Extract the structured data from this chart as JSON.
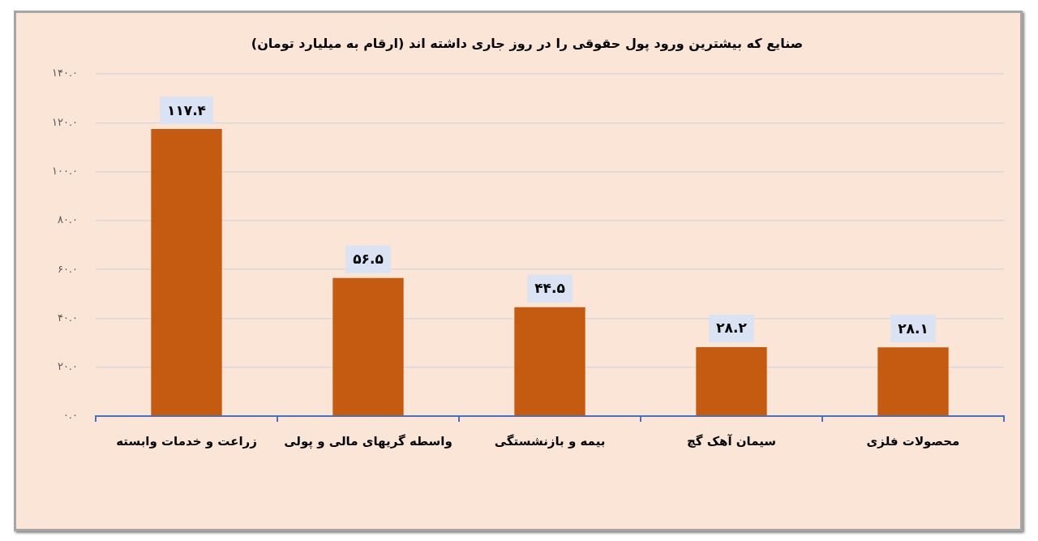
{
  "chart_data": {
    "type": "bar",
    "title": "صنایع که بیشترین ورود پول حقوقی را در روز جاری داشته اند (ارقام به میلیارد تومان)",
    "categories": [
      "زراعت و خدمات وابسته",
      "واسطه گریهای مالی و پولی",
      "بیمه و بازنشستگی",
      "سیمان آهک گچ",
      "محصولات فلزی"
    ],
    "values": [
      117.4,
      56.5,
      44.5,
      28.2,
      28.1
    ],
    "value_labels": [
      "۱۱۷.۴",
      "۵۶.۵",
      "۴۴.۵",
      "۲۸.۲",
      "۲۸.۱"
    ],
    "color": "#c55a11",
    "ylim": [
      0,
      140
    ],
    "yticks": [
      {
        "value": 0,
        "label": "۰.۰"
      },
      {
        "value": 20,
        "label": "۲۰.۰"
      },
      {
        "value": 40,
        "label": "۴۰.۰"
      },
      {
        "value": 60,
        "label": "۶۰.۰"
      },
      {
        "value": 80,
        "label": "۸۰.۰"
      },
      {
        "value": 100,
        "label": "۱۰۰.۰"
      },
      {
        "value": 120,
        "label": "۱۲۰.۰"
      },
      {
        "value": 140,
        "label": "۱۴۰.۰"
      }
    ],
    "grid": "y",
    "legend": false
  }
}
